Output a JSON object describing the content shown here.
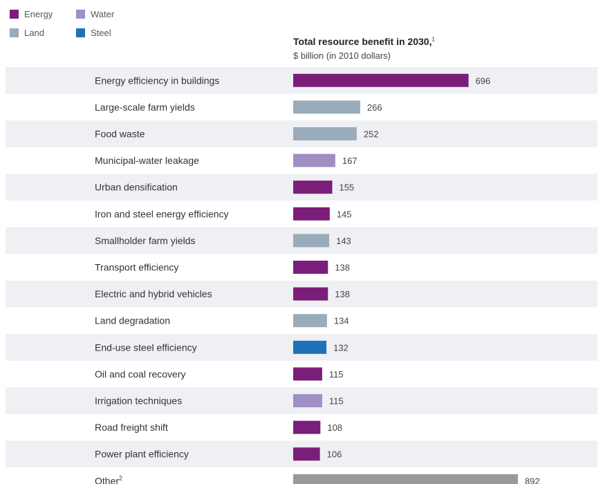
{
  "legend": [
    {
      "name": "Energy",
      "color": "#7b1e7a"
    },
    {
      "name": "Water",
      "color": "#9f8fc4"
    },
    {
      "name": "Land",
      "color": "#9aabb9"
    },
    {
      "name": "Steel",
      "color": "#1f72b8"
    }
  ],
  "colors": {
    "Energy": "#7b1e7a",
    "Water": "#9f8fc4",
    "Land": "#9aabb9",
    "Steel": "#1f72b8",
    "Other": "#999999",
    "stripe": "#eef0f3"
  },
  "chart_data": {
    "type": "bar",
    "orientation": "horizontal",
    "title": "Total resource benefit in 2030,",
    "title_footnote": "1",
    "subtitle": "$ billion (in 2010 dollars)",
    "categories": [
      "Energy efficiency in buildings",
      "Large-scale farm yields",
      "Food waste",
      "Municipal-water leakage",
      "Urban densification",
      "Iron and steel energy efficiency",
      "Smallholder farm yields",
      "Transport efficiency",
      "Electric and hybrid vehicles",
      "Land degradation",
      "End-use steel efficiency",
      "Oil and coal recovery",
      "Irrigation techniques",
      "Road freight shift",
      "Power plant efficiency",
      "Other"
    ],
    "footnotes": [
      "",
      "",
      "",
      "",
      "",
      "",
      "",
      "",
      "",
      "",
      "",
      "",
      "",
      "",
      "",
      "2"
    ],
    "values": [
      696,
      266,
      252,
      167,
      155,
      145,
      143,
      138,
      138,
      134,
      132,
      115,
      115,
      108,
      106,
      892
    ],
    "resource": [
      "Energy",
      "Land",
      "Land",
      "Water",
      "Energy",
      "Energy",
      "Land",
      "Energy",
      "Energy",
      "Land",
      "Steel",
      "Energy",
      "Water",
      "Energy",
      "Energy",
      "Other"
    ],
    "value_labels": [
      "696",
      "266",
      "252",
      "167",
      "155",
      "145",
      "143",
      "138",
      "138",
      "134",
      "132",
      "115",
      "115",
      "108",
      "106",
      "892"
    ],
    "xlim": [
      0,
      892
    ]
  }
}
